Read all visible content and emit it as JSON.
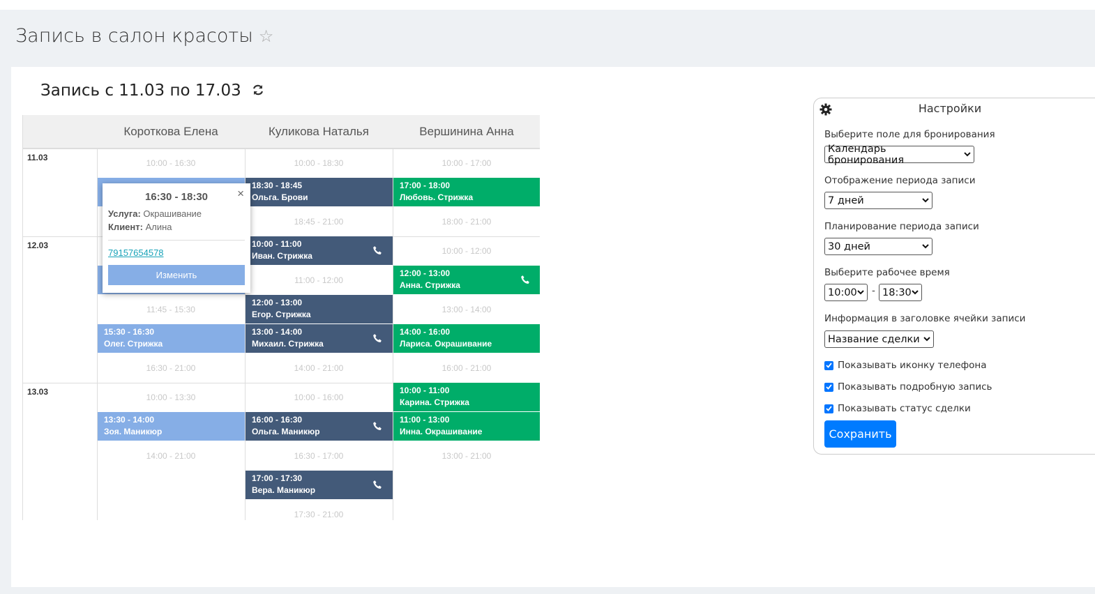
{
  "header": {
    "title": "Запись в салон красоты",
    "star": "☆"
  },
  "schedule": {
    "title": "Запись с 11.03 по 17.03",
    "staff": [
      {
        "name": "Короткова Елена",
        "color": "#86aee6"
      },
      {
        "name": "Куликова Наталья",
        "color": "#435a79"
      },
      {
        "name": "Вершинина Анна",
        "color": "#00ad69"
      }
    ],
    "days": [
      {
        "date": "11.03",
        "columns": [
          [
            {
              "type": "free",
              "time": "10:00 - 16:30"
            },
            {
              "type": "booked"
            },
            {
              "type": "free"
            }
          ],
          [
            {
              "type": "free",
              "time": "10:00 - 18:30"
            },
            {
              "type": "booked",
              "time": "18:30 - 18:45",
              "label": "Ольга. Брови"
            },
            {
              "type": "free",
              "time": "18:45 - 21:00"
            }
          ],
          [
            {
              "type": "free",
              "time": "10:00 - 17:00"
            },
            {
              "type": "booked",
              "time": "17:00 - 18:00",
              "label": "Любовь. Стрижка"
            },
            {
              "type": "free",
              "time": "18:00 - 21:00"
            }
          ]
        ]
      },
      {
        "date": "12.03",
        "columns": [
          [
            {
              "type": "free"
            },
            {
              "type": "booked"
            },
            {
              "type": "free",
              "time": "11:45 - 15:30"
            },
            {
              "type": "booked",
              "time": "15:30 - 16:30",
              "label": "Олег. Стрижка"
            },
            {
              "type": "free",
              "time": "16:30 - 21:00"
            }
          ],
          [
            {
              "type": "booked",
              "time": "10:00 - 11:00",
              "label": "Иван. Стрижка",
              "phone": true
            },
            {
              "type": "free",
              "time": "11:00 - 12:00"
            },
            {
              "type": "booked",
              "time": "12:00 - 13:00",
              "label": "Егор. Стрижка"
            },
            {
              "type": "booked",
              "time": "13:00 - 14:00",
              "label": "Михаил. Стрижка",
              "phone": true
            },
            {
              "type": "free",
              "time": "14:00 - 21:00"
            }
          ],
          [
            {
              "type": "free",
              "time": "10:00 - 12:00"
            },
            {
              "type": "booked",
              "time": "12:00 - 13:00",
              "label": "Анна. Стрижка",
              "phone": true
            },
            {
              "type": "free",
              "time": "13:00 - 14:00"
            },
            {
              "type": "booked",
              "time": "14:00 - 16:00",
              "label": "Лариса. Окрашивание"
            },
            {
              "type": "free",
              "time": "16:00 - 21:00"
            }
          ]
        ]
      },
      {
        "date": "13.03",
        "columns": [
          [
            {
              "type": "free",
              "time": "10:00 - 13:30"
            },
            {
              "type": "booked",
              "time": "13:30 - 14:00",
              "label": "Зоя. Маникюр"
            },
            {
              "type": "free",
              "time": "14:00 - 21:00"
            }
          ],
          [
            {
              "type": "free",
              "time": "10:00 - 16:00"
            },
            {
              "type": "booked",
              "time": "16:00 - 16:30",
              "label": "Ольга. Маникюр",
              "phone": true
            },
            {
              "type": "free",
              "time": "16:30 - 17:00"
            },
            {
              "type": "booked",
              "time": "17:00 - 17:30",
              "label": "Вера. Маникюр",
              "phone": true
            },
            {
              "type": "free",
              "time": "17:30 - 21:00"
            }
          ],
          [
            {
              "type": "booked",
              "time": "10:00 - 11:00",
              "label": "Карина. Стрижка"
            },
            {
              "type": "booked",
              "time": "11:00 - 13:00",
              "label": "Инна. Окрашивание"
            },
            {
              "type": "free",
              "time": "13:00 - 21:00"
            }
          ]
        ]
      }
    ]
  },
  "popup": {
    "title": "16:30 - 18:30",
    "close": "×",
    "fields": [
      {
        "label": "Услуга:",
        "value": "Окрашивание"
      },
      {
        "label": "Клиент:",
        "value": "Алина"
      }
    ],
    "phone": "79157654578",
    "button": "Изменить"
  },
  "settings": {
    "title": "Настройки",
    "selects": [
      {
        "label": "Выберите поле для бронирования",
        "value": "Календарь бронирования"
      },
      {
        "label": "Отображение периода записи",
        "value": "7 дней"
      },
      {
        "label": "Планирование периода записи",
        "value": "30 дней"
      }
    ],
    "worktime": {
      "label": "Выберите рабочее время",
      "from": "10:00",
      "separator": "-",
      "to": "18:30"
    },
    "header_info": {
      "label": "Информация в заголовке ячейки записи",
      "value": "Название сделки"
    },
    "checkboxes": [
      "Показывать иконку телефона",
      "Показывать подробную запись",
      "Показывать статус сделки"
    ],
    "button": "Сохранить"
  }
}
